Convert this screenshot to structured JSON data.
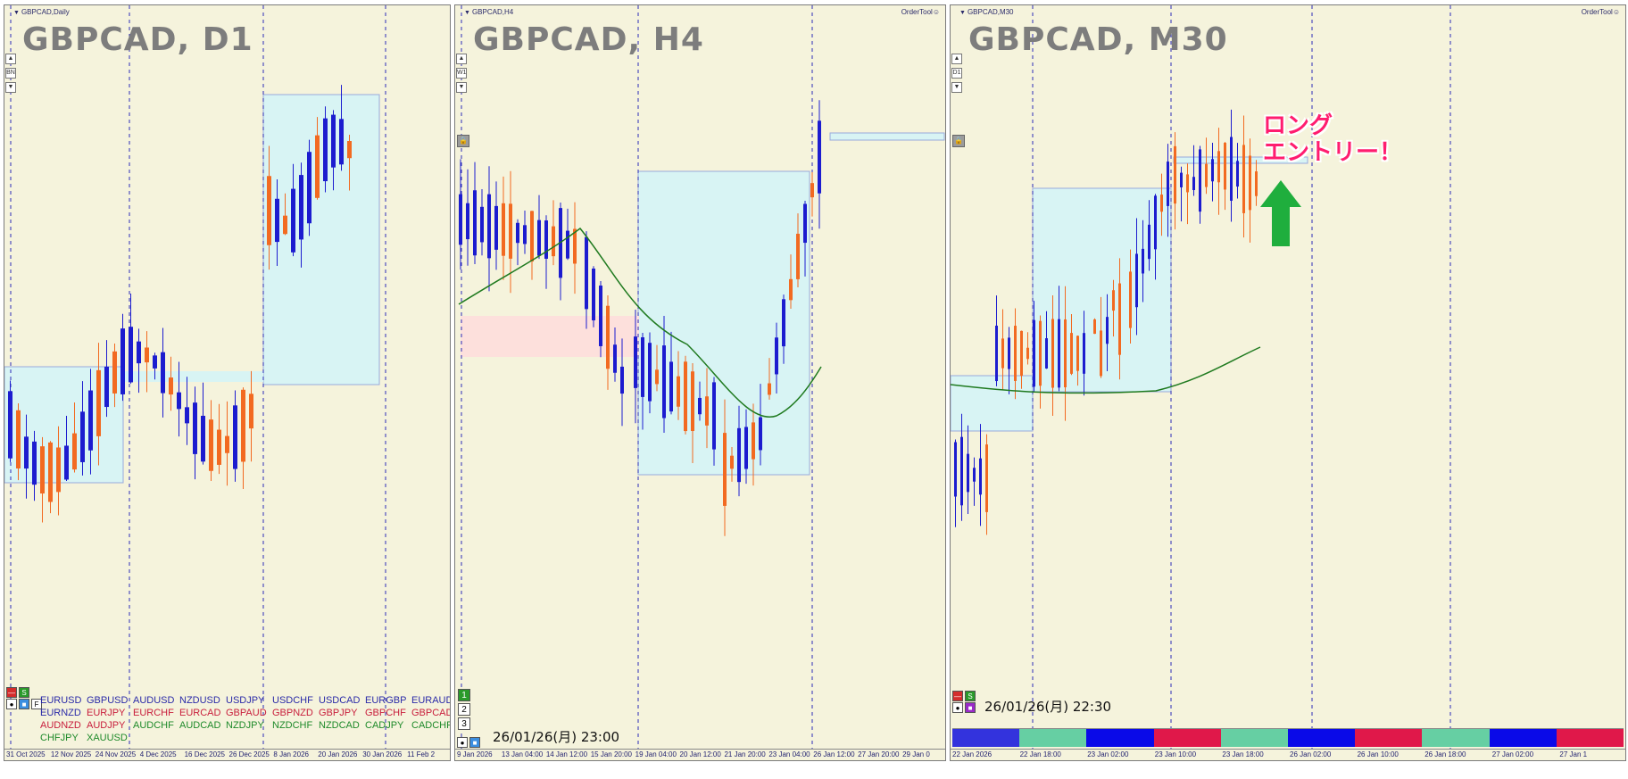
{
  "panels": [
    {
      "id": "d1",
      "window_title": "GBPCAD,Daily",
      "chart_title": "GBPCAD, D1",
      "ordertool": "",
      "axis_labels": [
        "31 Oct 2025",
        "12 Nov 2025",
        "24 Nov 2025",
        "4 Dec 2025",
        "16 Dec 2025",
        "26 Dec 2025",
        "8 Jan 2026",
        "20 Jan 2026",
        "30 Jan 2026",
        "11 Feb 2"
      ],
      "side_buttons": [
        "▲",
        "BN",
        "▼"
      ],
      "toolbar_buttons": [
        "—",
        "S",
        "F"
      ]
    },
    {
      "id": "h4",
      "window_title": "GBPCAD,H4",
      "chart_title": "GBPCAD, H4",
      "ordertool": "OrderTool☺",
      "axis_labels": [
        "9 Jan 2026",
        "13 Jan 04:00",
        "14 Jan 12:00",
        "15 Jan 20:00",
        "19 Jan 04:00",
        "20 Jan 12:00",
        "21 Jan 20:00",
        "23 Jan 04:00",
        "26 Jan 12:00",
        "27 Jan 20:00",
        "29 Jan 0"
      ],
      "side_buttons": [
        "▲",
        "W1",
        "▼"
      ],
      "number_buttons": [
        "1",
        "2",
        "3"
      ],
      "timestamp": "26/01/26(月) 23:00"
    },
    {
      "id": "m30",
      "window_title": "GBPCAD,M30",
      "chart_title": "GBPCAD, M30",
      "ordertool": "OrderTool☺",
      "axis_labels": [
        "22 Jan 2026",
        "22 Jan 18:00",
        "23 Jan 02:00",
        "23 Jan 10:00",
        "23 Jan 18:00",
        "26 Jan 02:00",
        "26 Jan 10:00",
        "26 Jan 18:00",
        "27 Jan 02:00",
        "27 Jan 1"
      ],
      "side_buttons": [
        "▲",
        "D1",
        "▼"
      ],
      "timestamp": "26/01/26(月) 22:30",
      "callout_line1": "ロング",
      "callout_line2": "エントリー！"
    }
  ],
  "symbols": [
    {
      "text": "EURUSD",
      "color": "#2a2aa8"
    },
    {
      "text": "GBPUSD",
      "color": "#2a2aa8"
    },
    {
      "text": "AUDUSD",
      "color": "#2a2aa8"
    },
    {
      "text": "NZDUSD",
      "color": "#2a2aa8"
    },
    {
      "text": "USDJPY",
      "color": "#2a2aa8"
    },
    {
      "text": "USDCHF",
      "color": "#2a2aa8"
    },
    {
      "text": "USDCAD",
      "color": "#2a2aa8"
    },
    {
      "text": "EURGBP",
      "color": "#2a2aa8"
    },
    {
      "text": "EURAUD",
      "color": "#2a2aa8"
    },
    {
      "text": "EURNZD",
      "color": "#2a2aa8"
    },
    {
      "text": "EURJPY",
      "color": "#c81e3c"
    },
    {
      "text": "EURCHF",
      "color": "#c81e3c"
    },
    {
      "text": "EURCAD",
      "color": "#c81e3c"
    },
    {
      "text": "GBPAUD",
      "color": "#c81e3c"
    },
    {
      "text": "GBPNZD",
      "color": "#c81e3c"
    },
    {
      "text": "GBPJPY",
      "color": "#c81e3c"
    },
    {
      "text": "GBPCHF",
      "color": "#c81e3c"
    },
    {
      "text": "GBPCAD",
      "color": "#c81e3c"
    },
    {
      "text": "AUDNZD",
      "color": "#c81e3c"
    },
    {
      "text": "AUDJPY",
      "color": "#c81e3c"
    },
    {
      "text": "AUDCHF",
      "color": "#1e8a2a"
    },
    {
      "text": "AUDCAD",
      "color": "#1e8a2a"
    },
    {
      "text": "NZDJPY",
      "color": "#1e8a2a"
    },
    {
      "text": "NZDCHF",
      "color": "#1e8a2a"
    },
    {
      "text": "NZDCAD",
      "color": "#1e8a2a"
    },
    {
      "text": "CADJPY",
      "color": "#1e8a2a"
    },
    {
      "text": "CADCHF",
      "color": "#1e8a2a"
    },
    {
      "text": "CHFJPY",
      "color": "#1e8a2a"
    },
    {
      "text": "XAUUSD",
      "color": "#1e8a2a"
    }
  ],
  "heat_strip": [
    "#3333dd",
    "#66cfa3",
    "#0a0ae8",
    "#e0184a",
    "#66cfa3",
    "#0a0ae8",
    "#e0184a",
    "#66cfa3",
    "#0a0ae8",
    "#e0184a"
  ],
  "colors": {
    "bull_candle": "#1c1ccf",
    "bear_candle": "#f26a21",
    "moving_average": "#1f7a1f",
    "zone_blue": "#d8f4f4",
    "zone_pink": "#fde0dc",
    "background": "#f5f3dc"
  }
}
